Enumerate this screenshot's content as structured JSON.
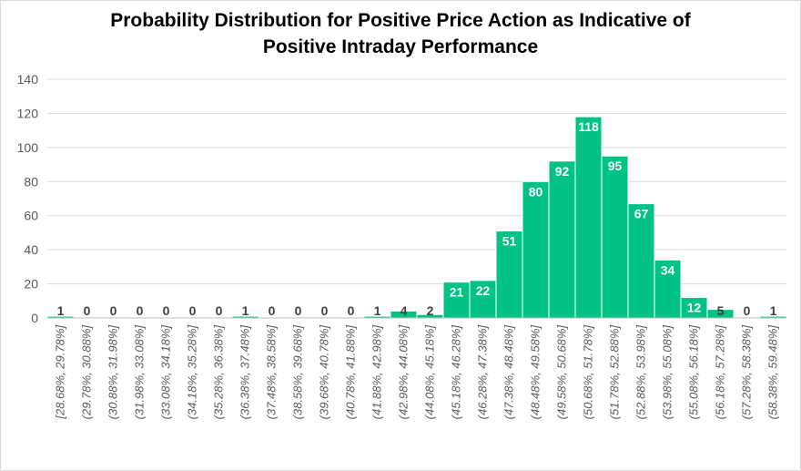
{
  "chart_data": {
    "type": "bar",
    "title_line1": "Probability Distribution for Positive Price Action as Indicative of",
    "title_line2": "Positive Intraday Performance",
    "xlabel": "",
    "ylabel": "",
    "ylim": [
      0,
      140
    ],
    "yticks": [
      "0",
      "20",
      "40",
      "60",
      "80",
      "100",
      "120",
      "140"
    ],
    "grid": true,
    "bar_color": "#00c285",
    "categories": [
      "[28.68%, 29.78%]",
      "(29.78%, 30.88%]",
      "(30.88%, 31.98%]",
      "(31.98%, 33.08%]",
      "(33.08%, 34.18%]",
      "(34.18%, 35.28%]",
      "(35.28%, 36.38%]",
      "(36.38%, 37.48%]",
      "(37.48%, 38.58%]",
      "(38.58%, 39.68%]",
      "(39.68%, 40.78%]",
      "(40.78%, 41.88%]",
      "(41.88%, 42.98%]",
      "(42.98%, 44.08%]",
      "(44.08%, 45.18%]",
      "(45.18%, 46.28%]",
      "(46.28%, 47.38%]",
      "(47.38%, 48.48%]",
      "(48.48%, 49.58%]",
      "(49.58%, 50.68%]",
      "(50.68%, 51.78%]",
      "(51.78%, 52.88%]",
      "(52.88%, 53.98%]",
      "(53.98%, 55.08%]",
      "(55.08%, 56.18%]",
      "(56.18%, 57.28%]",
      "(57.28%, 58.38%]",
      "(58.38%, 59.48%]"
    ],
    "values": [
      1,
      0,
      0,
      0,
      0,
      0,
      0,
      1,
      0,
      0,
      0,
      0,
      1,
      4,
      2,
      21,
      22,
      51,
      80,
      92,
      118,
      95,
      67,
      34,
      12,
      5,
      0,
      1
    ]
  }
}
